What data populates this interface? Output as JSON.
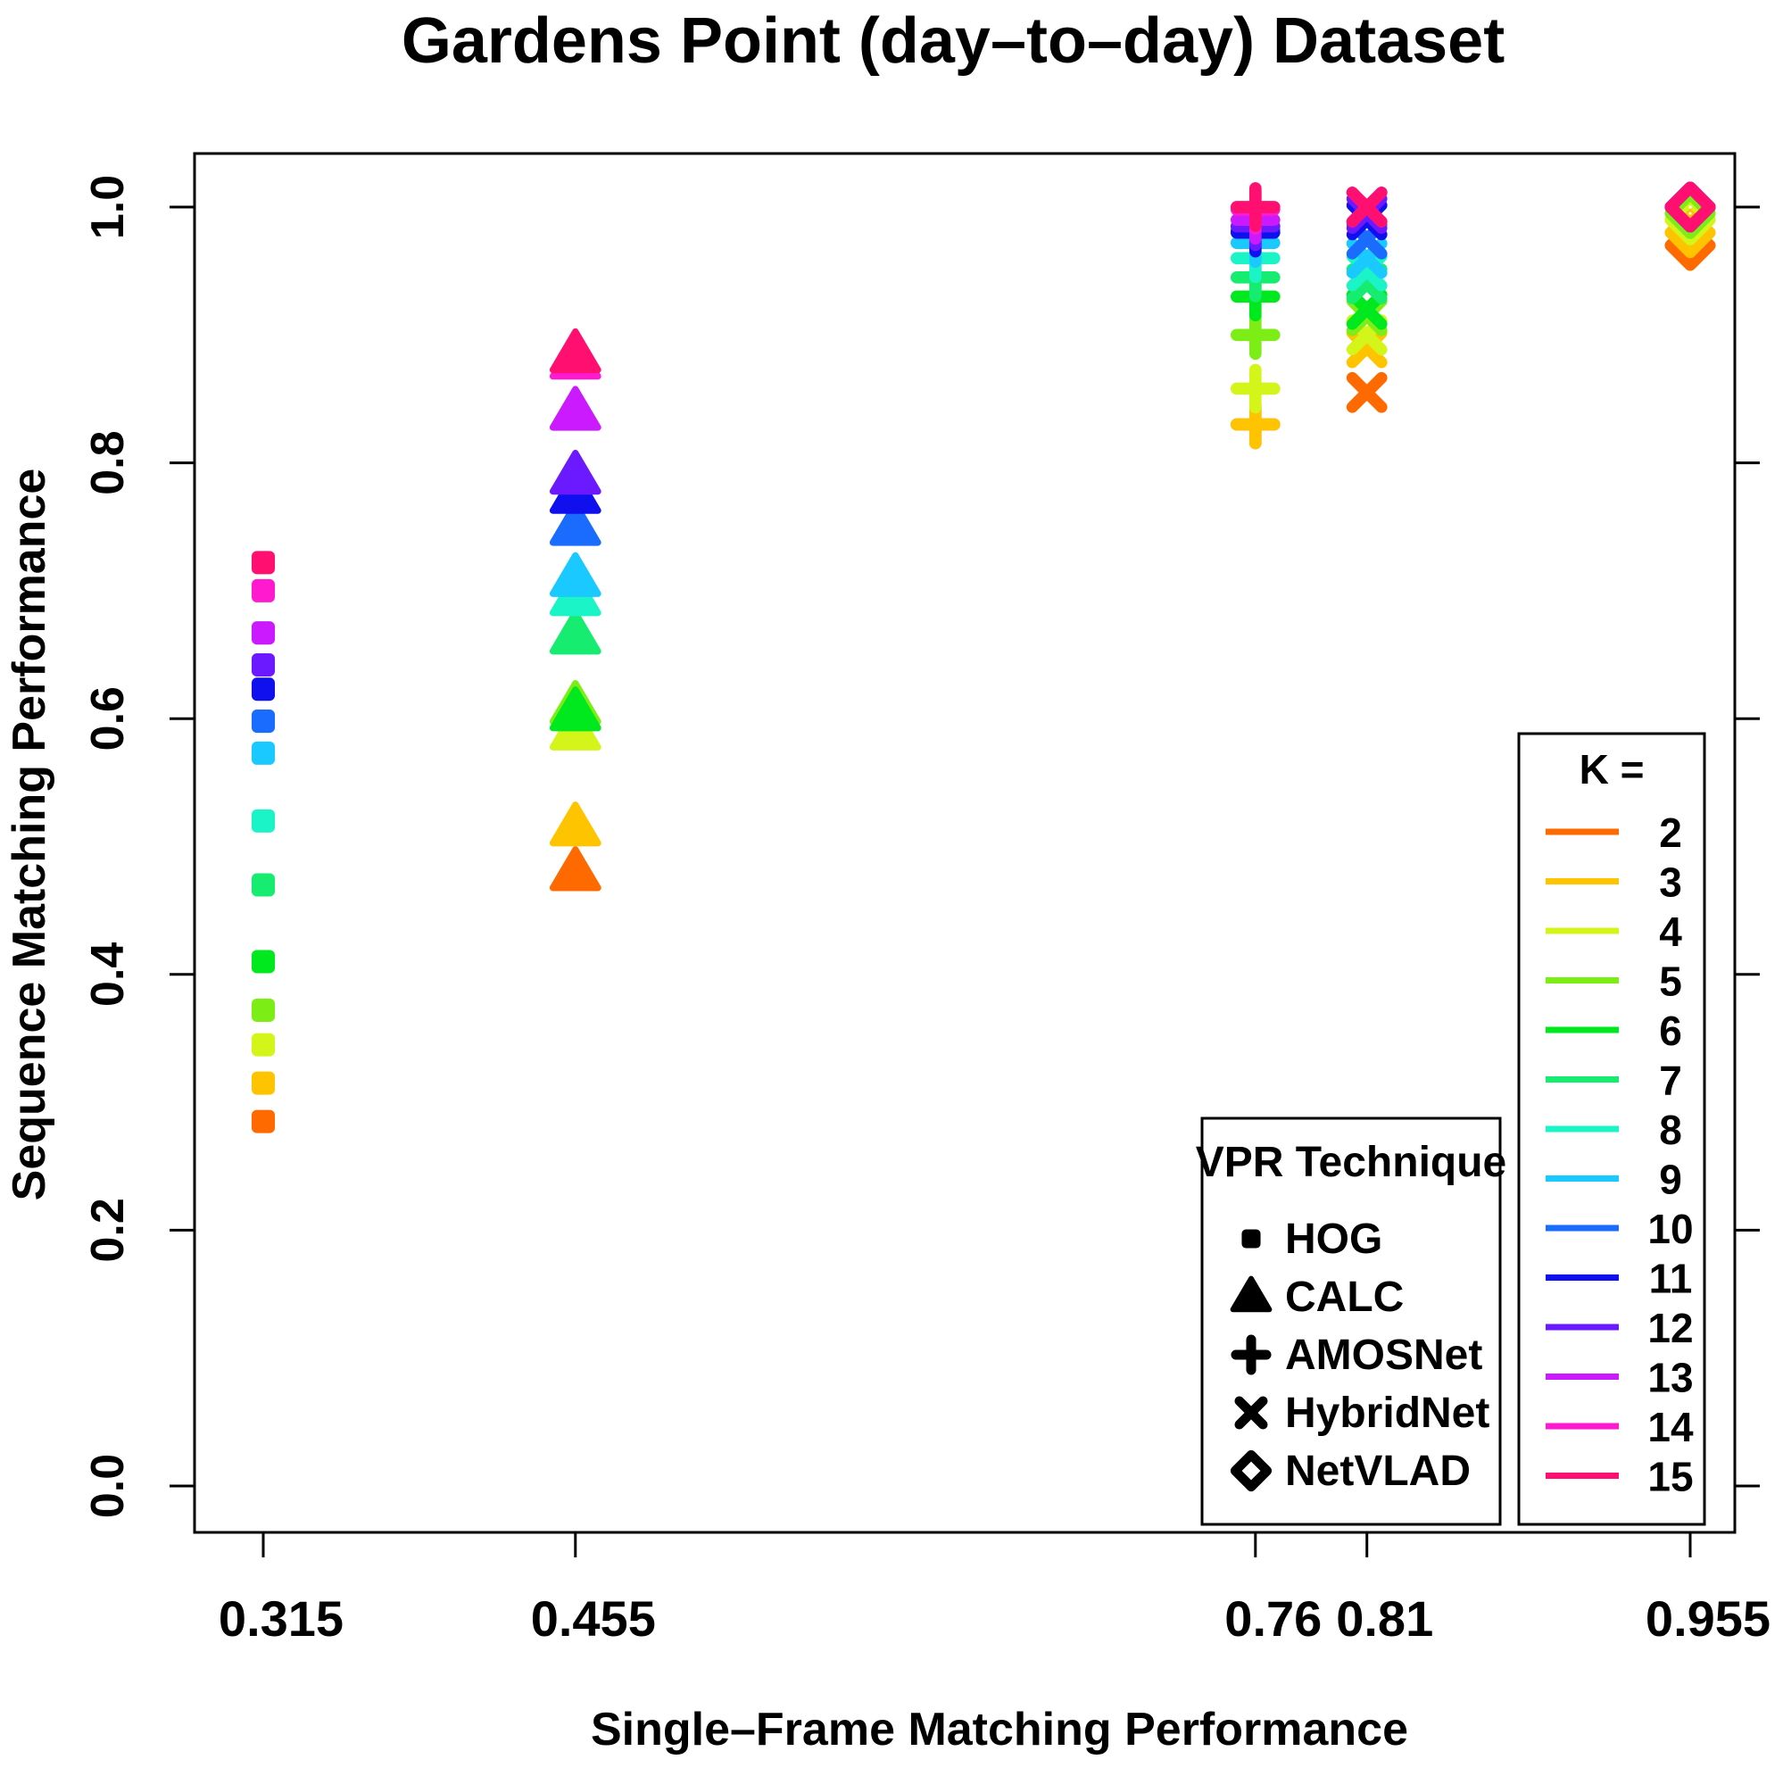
{
  "chart_data": {
    "type": "scatter",
    "title": "Gardens Point (day–to–day) Dataset",
    "xlabel": "Single–Frame Matching Performance",
    "ylabel": "Sequence Matching Performance",
    "ylim": [
      0,
      1
    ],
    "y_ticks": [
      "0.0",
      "0.2",
      "0.4",
      "0.6",
      "0.8",
      "1.0"
    ],
    "x_ticks": [
      "0.315",
      "0.455",
      "0.76",
      "0.81",
      "0.955"
    ],
    "grid": false,
    "k_legend": {
      "title": "K =",
      "placement": "right",
      "entries": [
        {
          "k": "2",
          "color": "#ff6a00"
        },
        {
          "k": "3",
          "color": "#ffc400"
        },
        {
          "k": "4",
          "color": "#d4f51a"
        },
        {
          "k": "5",
          "color": "#7ded16"
        },
        {
          "k": "6",
          "color": "#00e81e"
        },
        {
          "k": "7",
          "color": "#16ec6f"
        },
        {
          "k": "8",
          "color": "#1bf4c6"
        },
        {
          "k": "9",
          "color": "#19c9ff"
        },
        {
          "k": "10",
          "color": "#1a6cff"
        },
        {
          "k": "11",
          "color": "#1010ee"
        },
        {
          "k": "12",
          "color": "#6b1aff"
        },
        {
          "k": "13",
          "color": "#cc1aff"
        },
        {
          "k": "14",
          "color": "#ff1ad0"
        },
        {
          "k": "15",
          "color": "#ff1070"
        }
      ]
    },
    "technique_legend": {
      "title": "VPR Technique",
      "placement": "bottom-right",
      "entries": [
        {
          "name": "HOG",
          "shape": "square"
        },
        {
          "name": "CALC",
          "shape": "triangle"
        },
        {
          "name": "AMOSNet",
          "shape": "plus"
        },
        {
          "name": "HybridNet",
          "shape": "cross"
        },
        {
          "name": "NetVLAD",
          "shape": "diamond"
        }
      ]
    },
    "series": [
      {
        "technique": "HOG",
        "shape": "square",
        "x": 0.315,
        "y": [
          0.285,
          0.315,
          0.345,
          0.372,
          0.41,
          0.47,
          0.52,
          0.573,
          0.598,
          0.623,
          0.642,
          0.667,
          0.7,
          0.722
        ]
      },
      {
        "technique": "CALC",
        "shape": "triangle",
        "x": 0.455,
        "y": [
          0.48,
          0.515,
          0.59,
          0.61,
          0.605,
          0.665,
          0.695,
          0.71,
          0.75,
          0.775,
          0.79,
          0.84,
          0.88,
          0.885
        ]
      },
      {
        "technique": "AMOSNet",
        "shape": "plus",
        "x": 0.76,
        "y": [
          0.83,
          0.83,
          0.858,
          0.9,
          0.93,
          0.945,
          0.96,
          0.972,
          0.982,
          0.98,
          0.985,
          0.99,
          0.998,
          1.0
        ]
      },
      {
        "technique": "HybridNet",
        "shape": "cross",
        "x": 0.81,
        "y": [
          0.855,
          0.89,
          0.9,
          0.915,
          0.92,
          0.94,
          0.95,
          0.96,
          0.975,
          0.99,
          0.995,
          1.0,
          1.0,
          1.0
        ]
      },
      {
        "technique": "NetVLAD",
        "shape": "diamond",
        "x": 0.955,
        "y": [
          0.97,
          0.98,
          0.99,
          0.995,
          1.0,
          1.0,
          1.0,
          1.0,
          1.0,
          1.0,
          1.0,
          1.0,
          1.0,
          1.0
        ]
      }
    ]
  }
}
